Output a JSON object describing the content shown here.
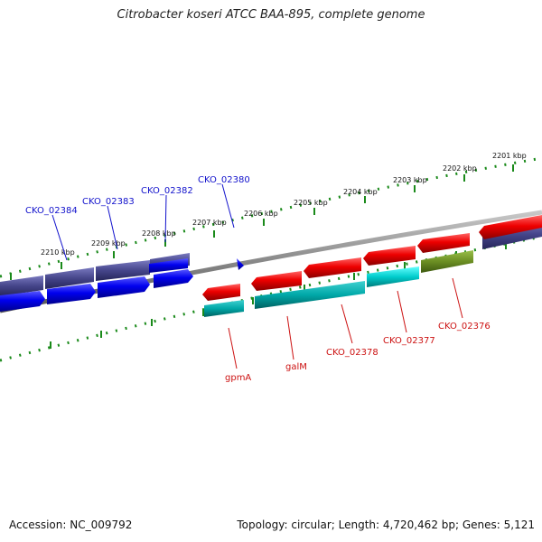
{
  "title": "Citrobacter koseri ATCC BAA-895, complete genome",
  "footer": {
    "accession": "Accession: NC_009792",
    "stats": "Topology: circular; Length: 4,720,462 bp; Genes: 5,121"
  },
  "scale_labels": [
    "2201 kbp",
    "2202 kbp",
    "2203 kbp",
    "2204 kbp",
    "2205 kbp",
    "2206 kbp",
    "2207 kbp",
    "2208 kbp",
    "2209 kbp",
    "2210 kbp"
  ],
  "gene_labels_top": [
    "CKO_02384",
    "CKO_02383",
    "CKO_02382",
    "CKO_02380"
  ],
  "gene_labels_bottom": [
    "gpmA",
    "galM",
    "CKO_02378",
    "CKO_02377",
    "CKO_02376"
  ],
  "colors": {
    "forward_cds": "#0000ee",
    "reverse_cds": "#ee0000",
    "forward_gene": "#4a4a8a",
    "reverse_gene_cyan": "#00cccc",
    "reverse_gene_olive": "#6b8e23",
    "backbone": "#888888",
    "tick": "#1a8a1a"
  }
}
